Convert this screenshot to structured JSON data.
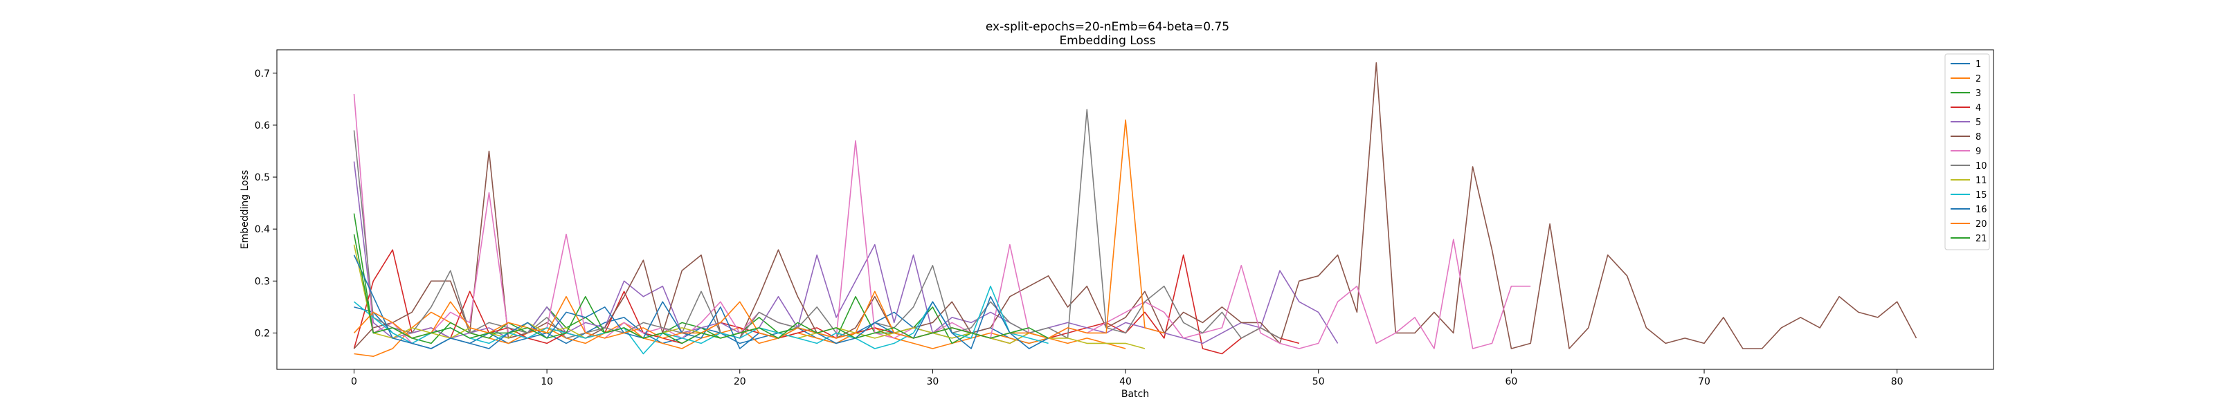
{
  "chart_data": {
    "type": "line",
    "title": "ex-split-epochs=20-nEmb=64-beta=0.75",
    "subtitle": "Embedding Loss",
    "xlabel": "Batch",
    "ylabel": "Embedding Loss",
    "xlim": [
      -4,
      85
    ],
    "ylim": [
      0.13,
      0.745
    ],
    "xticks": [
      0,
      10,
      20,
      30,
      40,
      50,
      60,
      70,
      80
    ],
    "yticks": [
      0.2,
      0.3,
      0.4,
      0.5,
      0.6,
      0.7
    ],
    "grid": false,
    "legend_position": "top-right",
    "series": [
      {
        "name": "1",
        "color": "#1f77b4",
        "values": [
          0.25,
          0.24,
          0.2,
          0.18,
          0.17,
          0.19,
          0.18,
          0.2,
          0.18,
          0.19,
          0.2,
          0.18,
          0.2,
          0.22,
          0.23,
          0.2,
          0.18,
          0.19,
          0.21,
          0.2,
          0.18,
          0.19,
          0.2,
          0.21,
          0.19,
          0.18,
          0.2,
          0.22,
          0.24,
          0.21,
          0.2,
          0.19,
          0.2,
          0.21,
          0.19,
          0.18,
          0.19
        ]
      },
      {
        "name": "2",
        "color": "#ff7f0e",
        "values": [
          0.16,
          0.155,
          0.17,
          0.21,
          0.24,
          0.22,
          0.2,
          0.19,
          0.18,
          0.2,
          0.21,
          0.19,
          0.18,
          0.2,
          0.22,
          0.19,
          0.18,
          0.17,
          0.19,
          0.2,
          0.21,
          0.18,
          0.19,
          0.2,
          0.19,
          0.18,
          0.2,
          0.21,
          0.19,
          0.18,
          0.17,
          0.18,
          0.19,
          0.2,
          0.19,
          0.18,
          0.19,
          0.18,
          0.19,
          0.18,
          0.17
        ]
      },
      {
        "name": "3",
        "color": "#2ca02c",
        "values": [
          0.43,
          0.2,
          0.21,
          0.19,
          0.18,
          0.22,
          0.2,
          0.19,
          0.22,
          0.2,
          0.25,
          0.21,
          0.23,
          0.2,
          0.21,
          0.19,
          0.2,
          0.22,
          0.21,
          0.19,
          0.2,
          0.23,
          0.2,
          0.21,
          0.2,
          0.19,
          0.27,
          0.2,
          0.2,
          0.21,
          0.25,
          0.18,
          0.2,
          0.19,
          0.2,
          0.21
        ]
      },
      {
        "name": "4",
        "color": "#d62728",
        "values": [
          0.17,
          0.3,
          0.36,
          0.2,
          0.21,
          0.19,
          0.28,
          0.2,
          0.21,
          0.19,
          0.18,
          0.2,
          0.19,
          0.2,
          0.28,
          0.2,
          0.19,
          0.18,
          0.2,
          0.22,
          0.21,
          0.2,
          0.19,
          0.2,
          0.21,
          0.19,
          0.2,
          0.21,
          0.2,
          0.19,
          0.2,
          0.21,
          0.2,
          0.19,
          0.18,
          0.2,
          0.19,
          0.2,
          0.21,
          0.22,
          0.2,
          0.24,
          0.19,
          0.35,
          0.17,
          0.16,
          0.19,
          0.21,
          0.19,
          0.18
        ]
      },
      {
        "name": "5",
        "color": "#9467bd",
        "values": [
          0.53,
          0.22,
          0.19,
          0.2,
          0.21,
          0.19,
          0.2,
          0.21,
          0.19,
          0.2,
          0.25,
          0.2,
          0.22,
          0.21,
          0.3,
          0.27,
          0.29,
          0.2,
          0.21,
          0.22,
          0.2,
          0.21,
          0.27,
          0.21,
          0.35,
          0.23,
          0.3,
          0.37,
          0.22,
          0.35,
          0.2,
          0.23,
          0.22,
          0.24,
          0.22,
          0.2,
          0.21,
          0.22,
          0.21,
          0.2,
          0.22,
          0.21,
          0.2,
          0.19,
          0.18,
          0.2,
          0.22,
          0.21,
          0.32,
          0.26,
          0.24,
          0.18
        ]
      },
      {
        "name": "8",
        "color": "#8c564b",
        "values": [
          0.17,
          0.21,
          0.22,
          0.24,
          0.3,
          0.3,
          0.2,
          0.55,
          0.19,
          0.2,
          0.22,
          0.2,
          0.19,
          0.21,
          0.27,
          0.34,
          0.2,
          0.32,
          0.35,
          0.2,
          0.19,
          0.27,
          0.36,
          0.27,
          0.2,
          0.19,
          0.21,
          0.27,
          0.2,
          0.21,
          0.22,
          0.26,
          0.2,
          0.21,
          0.27,
          0.29,
          0.31,
          0.25,
          0.29,
          0.21,
          0.23,
          0.28,
          0.2,
          0.24,
          0.22,
          0.25,
          0.22,
          0.22,
          0.18,
          0.3,
          0.31,
          0.35,
          0.24,
          0.72,
          0.2,
          0.2,
          0.24,
          0.2,
          0.52,
          0.36,
          0.17,
          0.18,
          0.41,
          0.17,
          0.21,
          0.35,
          0.31,
          0.21,
          0.18,
          0.19,
          0.18,
          0.23,
          0.17,
          0.17,
          0.21,
          0.23,
          0.21,
          0.27,
          0.24,
          0.23,
          0.26,
          0.19
        ]
      },
      {
        "name": "9",
        "color": "#e377c2",
        "values": [
          0.66,
          0.2,
          0.22,
          0.18,
          0.2,
          0.24,
          0.22,
          0.47,
          0.2,
          0.19,
          0.21,
          0.39,
          0.2,
          0.19,
          0.22,
          0.2,
          0.21,
          0.19,
          0.22,
          0.26,
          0.2,
          0.24,
          0.22,
          0.21,
          0.2,
          0.19,
          0.57,
          0.2,
          0.19,
          0.21,
          0.2,
          0.22,
          0.2,
          0.19,
          0.37,
          0.2,
          0.19,
          0.21,
          0.2,
          0.22,
          0.24,
          0.26,
          0.24,
          0.19,
          0.2,
          0.21,
          0.33,
          0.2,
          0.18,
          0.17,
          0.18,
          0.26,
          0.29,
          0.18,
          0.2,
          0.23,
          0.17,
          0.38,
          0.17,
          0.18,
          0.29,
          0.29
        ]
      },
      {
        "name": "10",
        "color": "#7f7f7f",
        "values": [
          0.59,
          0.23,
          0.21,
          0.2,
          0.25,
          0.32,
          0.2,
          0.22,
          0.21,
          0.2,
          0.23,
          0.19,
          0.2,
          0.21,
          0.2,
          0.22,
          0.21,
          0.2,
          0.28,
          0.2,
          0.19,
          0.24,
          0.22,
          0.21,
          0.25,
          0.2,
          0.19,
          0.22,
          0.21,
          0.25,
          0.33,
          0.2,
          0.21,
          0.26,
          0.22,
          0.2,
          0.21,
          0.19,
          0.63,
          0.21,
          0.2,
          0.26,
          0.29,
          0.22,
          0.2,
          0.24,
          0.19,
          0.21,
          0.19
        ]
      },
      {
        "name": "11",
        "color": "#bcbd22",
        "values": [
          0.37,
          0.2,
          0.19,
          0.21,
          0.2,
          0.19,
          0.21,
          0.2,
          0.19,
          0.22,
          0.2,
          0.21,
          0.19,
          0.2,
          0.21,
          0.19,
          0.2,
          0.21,
          0.2,
          0.19,
          0.2,
          0.21,
          0.2,
          0.19,
          0.2,
          0.21,
          0.2,
          0.19,
          0.2,
          0.21,
          0.2,
          0.19,
          0.2,
          0.19,
          0.18,
          0.2,
          0.19,
          0.19,
          0.18,
          0.18,
          0.18,
          0.17
        ]
      },
      {
        "name": "15",
        "color": "#17becf",
        "values": [
          0.26,
          0.23,
          0.2,
          0.18,
          0.2,
          0.21,
          0.19,
          0.18,
          0.2,
          0.19,
          0.21,
          0.2,
          0.19,
          0.2,
          0.21,
          0.16,
          0.2,
          0.19,
          0.18,
          0.2,
          0.19,
          0.21,
          0.2,
          0.19,
          0.18,
          0.2,
          0.19,
          0.17,
          0.18,
          0.2,
          0.26,
          0.2,
          0.19,
          0.29,
          0.2,
          0.19,
          0.18
        ]
      },
      {
        "name": "16",
        "color": "#1f77b4",
        "values": [
          0.35,
          0.27,
          0.19,
          0.18,
          0.17,
          0.19,
          0.18,
          0.17,
          0.2,
          0.22,
          0.19,
          0.24,
          0.23,
          0.25,
          0.2,
          0.19,
          0.26,
          0.2,
          0.19,
          0.25,
          0.17,
          0.2,
          0.19,
          0.21,
          0.2,
          0.18,
          0.19,
          0.22,
          0.2,
          0.19,
          0.26,
          0.2,
          0.17,
          0.27,
          0.2,
          0.17,
          0.19
        ]
      },
      {
        "name": "20",
        "color": "#ff7f0e",
        "values": [
          0.2,
          0.24,
          0.22,
          0.19,
          0.2,
          0.26,
          0.21,
          0.2,
          0.22,
          0.21,
          0.2,
          0.27,
          0.2,
          0.19,
          0.2,
          0.21,
          0.19,
          0.2,
          0.2,
          0.22,
          0.26,
          0.2,
          0.19,
          0.21,
          0.2,
          0.19,
          0.2,
          0.28,
          0.2,
          0.19,
          0.2,
          0.21,
          0.2,
          0.19,
          0.2,
          0.2,
          0.19,
          0.21,
          0.2,
          0.2,
          0.61,
          0.21,
          0.2
        ]
      },
      {
        "name": "21",
        "color": "#2ca02c",
        "values": [
          0.39,
          0.2,
          0.21,
          0.19,
          0.2,
          0.21,
          0.19,
          0.2,
          0.2,
          0.21,
          0.19,
          0.2,
          0.27,
          0.2,
          0.21,
          0.19,
          0.2,
          0.18,
          0.2,
          0.19,
          0.2,
          0.21,
          0.19,
          0.22,
          0.2,
          0.21,
          0.19,
          0.2,
          0.21,
          0.19,
          0.2,
          0.21,
          0.2,
          0.19,
          0.2,
          0.21,
          0.19
        ]
      }
    ]
  }
}
